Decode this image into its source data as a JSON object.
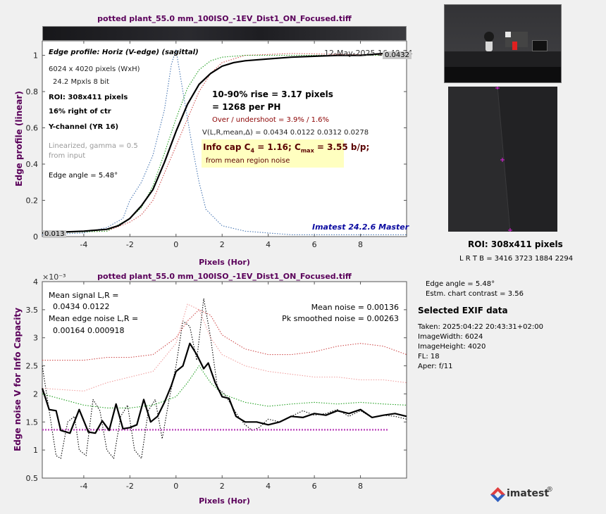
{
  "filename": "potted plant_55.0 mm_100ISO_-1EV_Dist1_ON_Focused.tiff",
  "colors": {
    "title": "#5a005a",
    "axis_label": "#5a005a",
    "brand_blue": "#0a0aa0",
    "dark_red": "#8b0000",
    "info_box_bg": "#ffffc0",
    "mean_line": "#000000",
    "dotted_blue": "#4a78b4",
    "dotted_red": "#d05050",
    "dotted_green": "#22a022",
    "dotted_pink": "#f0a0a0",
    "dotted_magenta": "#c050c0",
    "cross_magenta": "#e020e0"
  },
  "top_plot": {
    "title": "potted plant_55.0 mm_100ISO_-1EV_Dist1_ON_Focused.tiff",
    "heading": "Edge profile: Horiz (V-edge) (sagittal)",
    "date": "12-May-2025 16:40:34",
    "badge_top": "0.0432",
    "badge_bottom": "0.013",
    "info_lines": [
      "6024 x 4020 pixels (WxH)",
      "24.2 Mpxls   8 bit"
    ],
    "roi": "ROI:  308x411 pixels",
    "roi_pos": "16% right of ctr",
    "channel": "Y-channel  (YR 16)",
    "linearized": [
      "Linearized, gamma = 0.5",
      "from input"
    ],
    "edge_angle": "Edge angle = 5.48°",
    "rise": "10-90% rise = 3.17 pixels",
    "per_ph": "=   1268 per PH",
    "overshoot": "Over / undershoot =  3.9% /  1.6%",
    "v_stats": "V(L,R,mean,Δ) = 0.0434  0.0122  0.0312  0.0278",
    "info_cap": "Info cap C₄ = 1.16;  Cₘₐₓ = 3.55 b/p;",
    "info_cap_parts": {
      "a": "Info cap C",
      "a_sub": "4",
      "b": " = 1.16;  C",
      "b_sub": "max",
      "c": " = 3.55 b/p;"
    },
    "from_noise": "from mean region noise",
    "brand": "Imatest 24.2.6 Master",
    "ylabel": "Edge profile (linear)",
    "xlabel": "Pixels (Hor)"
  },
  "bottom_plot": {
    "title": "potted plant_55.0 mm_100ISO_-1EV_Dist1_ON_Focused.tiff",
    "exponent": "×10⁻³",
    "mean_signal": [
      "Mean signal L,R =",
      "0.0434  0.0122"
    ],
    "mean_edge_noise": [
      "Mean edge noise L,R =",
      "0.00164  0.000918"
    ],
    "mean_noise": "Mean noise = 0.00136",
    "pk_noise": "Pk smoothed noise = 0.00263",
    "ylabel": "Edge noise V for Info Capacity",
    "xlabel": "Pixels (Hor)"
  },
  "side": {
    "roi_label": "ROI:  308x411 pixels",
    "lrtb": "L R  T B = 3416 3723  1884 2294",
    "edge_angle": "Edge angle = 5.48°",
    "contrast": "Estm. chart contrast = 3.56",
    "exif_heading": "Selected EXIF data",
    "exif": [
      "Taken: 2025:04:22 20:43:31+02:00",
      "ImageWidth:  6024",
      "ImageHeight:  4020",
      "FL:   18",
      "Aper:  f/11"
    ],
    "logo_text": "imatest",
    "logo_reg": "®"
  },
  "chart_data": [
    {
      "type": "line",
      "title": "potted plant_55.0 mm_100ISO_-1EV_Dist1_ON_Focused.tiff",
      "xlabel": "Pixels (Hor)",
      "ylabel": "Edge profile (linear)",
      "xlim": [
        -5.8,
        10
      ],
      "ylim": [
        0,
        1.08
      ],
      "xticks": [
        -4,
        -2,
        0,
        2,
        4,
        6,
        8
      ],
      "yticks": [
        0,
        0.2,
        0.4,
        0.6,
        0.8,
        1
      ],
      "grid": false,
      "series": [
        {
          "style": "solid-black",
          "x": [
            -5.8,
            -5,
            -4,
            -3,
            -2.5,
            -2,
            -1.5,
            -1,
            -0.5,
            0,
            0.5,
            1,
            1.5,
            2,
            2.5,
            3,
            4,
            5,
            6,
            7,
            8,
            9,
            10
          ],
          "y": [
            0.02,
            0.025,
            0.03,
            0.04,
            0.06,
            0.1,
            0.17,
            0.26,
            0.41,
            0.58,
            0.73,
            0.84,
            0.9,
            0.94,
            0.96,
            0.97,
            0.98,
            0.99,
            0.995,
            1.0,
            1.0,
            1.01,
            1.0
          ]
        },
        {
          "style": "dotted-blue",
          "x": [
            -5.8,
            -4,
            -3,
            -2.3,
            -2,
            -1.5,
            -1,
            -0.5,
            -0.2,
            0,
            0.3,
            0.7,
            1,
            1.3,
            2,
            3,
            4,
            5,
            6,
            7,
            8,
            10
          ],
          "y": [
            0.01,
            0.02,
            0.05,
            0.1,
            0.2,
            0.3,
            0.45,
            0.7,
            0.95,
            1.03,
            0.8,
            0.5,
            0.3,
            0.15,
            0.06,
            0.03,
            0.02,
            0.01,
            0.01,
            0.01,
            0.01,
            0.01
          ]
        },
        {
          "style": "dotted-red",
          "x": [
            -5.8,
            -3,
            -2,
            -1.5,
            -1,
            -0.5,
            0,
            0.5,
            1,
            1.5,
            2,
            3,
            5,
            10
          ],
          "y": [
            0.02,
            0.03,
            0.08,
            0.12,
            0.2,
            0.35,
            0.5,
            0.65,
            0.8,
            0.9,
            0.96,
            1.0,
            1.01,
            1.0
          ]
        },
        {
          "style": "dotted-green",
          "x": [
            -5.8,
            -3,
            -2,
            -1.5,
            -1,
            -0.5,
            0,
            0.5,
            1,
            1.5,
            2,
            3,
            5,
            10
          ],
          "y": [
            0.02,
            0.03,
            0.1,
            0.16,
            0.28,
            0.46,
            0.65,
            0.82,
            0.92,
            0.97,
            0.99,
            1.0,
            1.0,
            1.0
          ]
        }
      ]
    },
    {
      "type": "line",
      "title": "potted plant_55.0 mm_100ISO_-1EV_Dist1_ON_Focused.tiff",
      "xlabel": "Pixels (Hor)",
      "ylabel": "Edge noise V for Info Capacity",
      "y_multiplier": "1e-3",
      "xlim": [
        -5.8,
        10
      ],
      "ylim": [
        0.5,
        4
      ],
      "xticks": [
        -4,
        -2,
        0,
        2,
        4,
        6,
        8
      ],
      "yticks": [
        0.5,
        1,
        1.5,
        2,
        2.5,
        3,
        3.5,
        4
      ],
      "grid": false,
      "series": [
        {
          "style": "solid-black",
          "x": [
            -5.8,
            -5.5,
            -5.2,
            -5,
            -4.6,
            -4.2,
            -3.8,
            -3.5,
            -3.2,
            -2.9,
            -2.6,
            -2.3,
            -2,
            -1.7,
            -1.4,
            -1.1,
            -0.8,
            -0.5,
            -0.2,
            0,
            0.3,
            0.6,
            0.9,
            1.2,
            1.4,
            1.7,
            2,
            2.3,
            2.6,
            3,
            3.5,
            4,
            4.5,
            5,
            5.5,
            6,
            6.5,
            7,
            7.5,
            8,
            8.5,
            9,
            9.5,
            10
          ],
          "y": [
            2.1,
            1.72,
            1.7,
            1.35,
            1.3,
            1.72,
            1.32,
            1.3,
            1.52,
            1.35,
            1.82,
            1.38,
            1.4,
            1.45,
            1.9,
            1.5,
            1.6,
            1.85,
            2.15,
            2.4,
            2.5,
            2.9,
            2.7,
            2.45,
            2.55,
            2.2,
            1.95,
            1.92,
            1.6,
            1.5,
            1.5,
            1.45,
            1.5,
            1.6,
            1.58,
            1.65,
            1.62,
            1.7,
            1.65,
            1.72,
            1.58,
            1.62,
            1.65,
            1.6
          ]
        },
        {
          "style": "dotted-black",
          "x": [
            -5.8,
            -5.5,
            -5.2,
            -5,
            -4.7,
            -4.4,
            -4.2,
            -3.9,
            -3.6,
            -3.3,
            -3,
            -2.7,
            -2.4,
            -2.1,
            -1.8,
            -1.5,
            -1.2,
            -0.9,
            -0.6,
            -0.3,
            0,
            0.3,
            0.6,
            0.9,
            1.2,
            1.5,
            1.8,
            2.1,
            2.4,
            2.7,
            3,
            3.3,
            3.6,
            4,
            4.5,
            5,
            5.5,
            6,
            6.5,
            7,
            7.5,
            8,
            8.5,
            9,
            9.5,
            10
          ],
          "y": [
            2.5,
            1.7,
            0.9,
            0.85,
            1.5,
            1.6,
            1.0,
            0.9,
            1.9,
            1.7,
            1.0,
            0.85,
            1.6,
            1.8,
            1.0,
            0.85,
            1.7,
            1.9,
            1.2,
            1.9,
            2.5,
            3.3,
            3.2,
            2.6,
            3.7,
            3.0,
            2.1,
            2.0,
            1.8,
            1.6,
            1.45,
            1.35,
            1.4,
            1.55,
            1.5,
            1.6,
            1.7,
            1.62,
            1.65,
            1.72,
            1.6,
            1.7,
            1.58,
            1.62,
            1.6,
            1.55
          ]
        },
        {
          "style": "dotted-red",
          "x": [
            -5.8,
            -4,
            -3,
            -2,
            -1,
            0,
            0.5,
            1,
            1.5,
            2,
            3,
            4,
            5,
            6,
            7,
            8,
            9,
            10
          ],
          "y": [
            2.6,
            2.6,
            2.65,
            2.65,
            2.7,
            3.0,
            3.3,
            3.5,
            3.4,
            3.05,
            2.8,
            2.7,
            2.7,
            2.75,
            2.85,
            2.9,
            2.85,
            2.7
          ]
        },
        {
          "style": "dotted-pink",
          "x": [
            -5.8,
            -4,
            -3,
            -2,
            -1,
            0,
            0.5,
            1,
            1.5,
            2,
            3,
            4,
            5,
            6,
            7,
            8,
            9,
            10
          ],
          "y": [
            2.1,
            2.05,
            2.2,
            2.3,
            2.4,
            2.9,
            3.6,
            3.5,
            3.0,
            2.7,
            2.5,
            2.4,
            2.35,
            2.3,
            2.3,
            2.25,
            2.25,
            2.2
          ]
        },
        {
          "style": "dotted-green",
          "x": [
            -5.8,
            -4,
            -3,
            -2,
            -1,
            0,
            0.5,
            1,
            1.5,
            2,
            3,
            4,
            5,
            6,
            7,
            8,
            9,
            10
          ],
          "y": [
            2.0,
            1.8,
            1.75,
            1.75,
            1.8,
            1.95,
            2.2,
            2.5,
            2.2,
            2.0,
            1.85,
            1.78,
            1.82,
            1.85,
            1.82,
            1.85,
            1.82,
            1.8
          ]
        },
        {
          "style": "dotted-magenta-mean",
          "x": [
            -5.8,
            9.2
          ],
          "y": [
            1.36,
            1.36
          ]
        }
      ]
    }
  ]
}
